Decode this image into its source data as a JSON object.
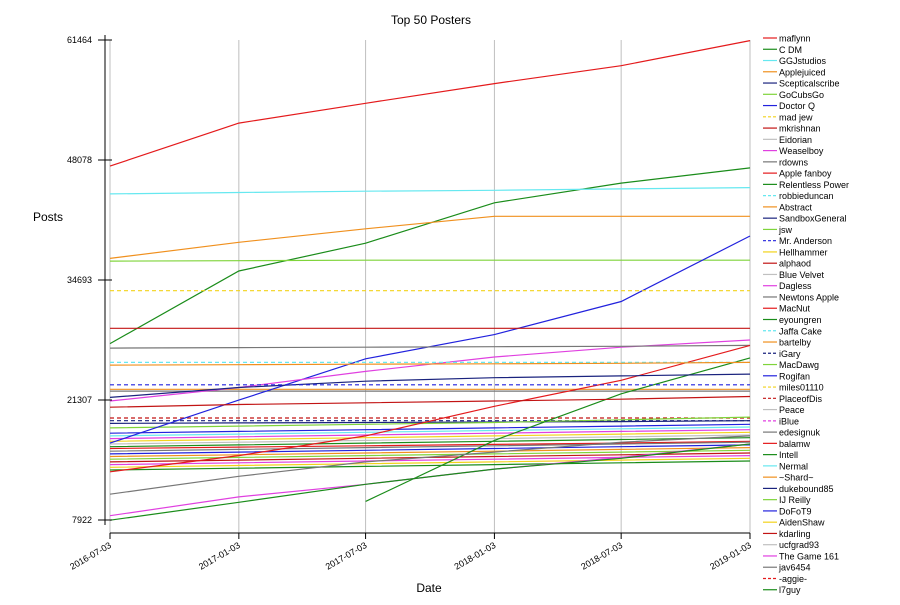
{
  "chart_data": {
    "type": "line",
    "title": "Top 50 Posters",
    "xlabel": "Date",
    "ylabel": "Posts",
    "x": [
      "2016-07-03",
      "2017-01-03",
      "2017-07-03",
      "2018-01-03",
      "2018-07-03",
      "2019-01-03"
    ],
    "xlim": [
      "2016-07-03",
      "2019-01-03"
    ],
    "ylim": [
      7922,
      61464
    ],
    "yticks": [
      7922,
      21307,
      34693,
      48078,
      61464
    ],
    "grid": "vertical",
    "legend_position": "right",
    "series": [
      {
        "name": "maflynn",
        "color": "#e41a1c",
        "dashed": false,
        "values": [
          47400,
          52200,
          54400,
          56600,
          58600,
          61400
        ]
      },
      {
        "name": "C DM",
        "color": "#1a8c1a",
        "dashed": false,
        "values": [
          27600,
          35700,
          38800,
          43300,
          45500,
          47200
        ]
      },
      {
        "name": "GGJstudios",
        "color": "#66e8f0",
        "dashed": false,
        "values": [
          44300,
          44450,
          44600,
          44700,
          44850,
          45000
        ]
      },
      {
        "name": "Applejuiced",
        "color": "#f0901e",
        "dashed": false,
        "values": [
          37100,
          38900,
          40400,
          41800,
          41800,
          41800
        ]
      },
      {
        "name": "Scepticalscribe",
        "color": "#1a237e",
        "dashed": false,
        "values": [
          null,
          null,
          null,
          null,
          null,
          null
        ]
      },
      {
        "name": "GoCubsGo",
        "color": "#7fd43a",
        "dashed": false,
        "values": [
          36800,
          36850,
          36900,
          36900,
          36900,
          36900
        ]
      },
      {
        "name": "Doctor Q",
        "color": "#2222dd",
        "dashed": false,
        "values": [
          16500,
          21300,
          25900,
          28600,
          32300,
          39600
        ]
      },
      {
        "name": "mad jew",
        "color": "#f2d21b",
        "dashed": true,
        "values": [
          33500,
          33500,
          33500,
          33500,
          33500,
          33500
        ]
      },
      {
        "name": "mkrishnan",
        "color": "#c21414",
        "dashed": false,
        "values": [
          29300,
          29300,
          29300,
          29300,
          29300,
          29300
        ]
      },
      {
        "name": "Eidorian",
        "color": "#c0c0c0",
        "dashed": false,
        "values": [
          null,
          null,
          null,
          null,
          null,
          null
        ]
      },
      {
        "name": "Weaselboy",
        "color": "#e040e0",
        "dashed": false,
        "values": [
          21200,
          22700,
          24500,
          26100,
          27200,
          28000
        ]
      },
      {
        "name": "rdowns",
        "color": "#777777",
        "dashed": false,
        "values": [
          27100,
          27150,
          27200,
          27250,
          27300,
          27400
        ]
      },
      {
        "name": "Apple fanboy",
        "color": "#e41a1c",
        "dashed": false,
        "values": [
          13300,
          15100,
          17300,
          20600,
          23500,
          27400
        ]
      },
      {
        "name": "Relentless Power",
        "color": "#1a8c1a",
        "dashed": false,
        "values": [
          null,
          null,
          10000,
          16800,
          22000,
          26000
        ]
      },
      {
        "name": "robbieduncan",
        "color": "#66e8f0",
        "dashed": true,
        "values": [
          25500,
          25500,
          25500,
          25500,
          25500,
          25500
        ]
      },
      {
        "name": "Abstract",
        "color": "#f0901e",
        "dashed": false,
        "values": [
          25200,
          25250,
          25300,
          25350,
          25400,
          25500
        ]
      },
      {
        "name": "SandboxGeneral",
        "color": "#1a237e",
        "dashed": false,
        "values": [
          21600,
          22700,
          23400,
          23800,
          24000,
          24200
        ]
      },
      {
        "name": "jsw",
        "color": "#7fd43a",
        "dashed": false,
        "values": [
          null,
          null,
          null,
          null,
          null,
          null
        ]
      },
      {
        "name": "Mr. Anderson",
        "color": "#2222dd",
        "dashed": true,
        "values": [
          23000,
          23000,
          23000,
          23000,
          23000,
          23000
        ]
      },
      {
        "name": "Hellhammer",
        "color": "#f2d21b",
        "dashed": false,
        "values": [
          null,
          null,
          null,
          null,
          null,
          null
        ]
      },
      {
        "name": "alphaod",
        "color": "#c21414",
        "dashed": false,
        "values": [
          20500,
          20800,
          21000,
          21200,
          21400,
          21700
        ]
      },
      {
        "name": "Blue Velvet",
        "color": "#c0c0c0",
        "dashed": false,
        "values": [
          null,
          null,
          null,
          null,
          null,
          null
        ]
      },
      {
        "name": "Dagless",
        "color": "#e040e0",
        "dashed": false,
        "values": [
          null,
          null,
          null,
          null,
          null,
          null
        ]
      },
      {
        "name": "Newtons Apple",
        "color": "#777777",
        "dashed": false,
        "values": [
          null,
          null,
          null,
          null,
          null,
          null
        ]
      },
      {
        "name": "MacNut",
        "color": "#e41a1c",
        "dashed": false,
        "values": [
          null,
          null,
          null,
          null,
          null,
          null
        ]
      },
      {
        "name": "eyoungren",
        "color": "#1a8c1a",
        "dashed": false,
        "values": [
          null,
          null,
          null,
          null,
          null,
          null
        ]
      },
      {
        "name": "Jaffa Cake",
        "color": "#66e8f0",
        "dashed": true,
        "values": [
          null,
          null,
          null,
          null,
          null,
          null
        ]
      },
      {
        "name": "bartelby",
        "color": "#f0901e",
        "dashed": false,
        "values": [
          null,
          null,
          null,
          null,
          null,
          null
        ]
      },
      {
        "name": "iGary",
        "color": "#1a237e",
        "dashed": true,
        "values": [
          null,
          null,
          null,
          null,
          null,
          null
        ]
      },
      {
        "name": "MacDawg",
        "color": "#7fd43a",
        "dashed": false,
        "values": [
          null,
          null,
          null,
          null,
          null,
          null
        ]
      },
      {
        "name": "Rogifan",
        "color": "#2222dd",
        "dashed": false,
        "values": [
          null,
          null,
          null,
          null,
          null,
          null
        ]
      },
      {
        "name": "miles01110",
        "color": "#f2d21b",
        "dashed": true,
        "values": [
          null,
          null,
          null,
          null,
          null,
          null
        ]
      },
      {
        "name": "PlaceofDis",
        "color": "#c21414",
        "dashed": true,
        "values": [
          null,
          null,
          null,
          null,
          null,
          null
        ]
      },
      {
        "name": "Peace",
        "color": "#c0c0c0",
        "dashed": false,
        "values": [
          null,
          null,
          null,
          null,
          null,
          null
        ]
      },
      {
        "name": "iBlue",
        "color": "#e040e0",
        "dashed": true,
        "values": [
          null,
          null,
          null,
          null,
          null,
          null
        ]
      },
      {
        "name": "edesignuk",
        "color": "#777777",
        "dashed": false,
        "values": [
          null,
          null,
          null,
          null,
          null,
          null
        ]
      },
      {
        "name": "balamw",
        "color": "#e41a1c",
        "dashed": false,
        "values": [
          null,
          null,
          null,
          null,
          null,
          null
        ]
      },
      {
        "name": "Intell",
        "color": "#1a8c1a",
        "dashed": false,
        "values": [
          null,
          null,
          null,
          null,
          null,
          null
        ]
      },
      {
        "name": "Nermal",
        "color": "#66e8f0",
        "dashed": false,
        "values": [
          null,
          null,
          null,
          null,
          null,
          null
        ]
      },
      {
        "name": "~Shard~",
        "color": "#f0901e",
        "dashed": false,
        "values": [
          null,
          null,
          null,
          null,
          null,
          null
        ]
      },
      {
        "name": "dukebound85",
        "color": "#1a237e",
        "dashed": false,
        "values": [
          null,
          null,
          null,
          null,
          null,
          null
        ]
      },
      {
        "name": "IJ Reilly",
        "color": "#7fd43a",
        "dashed": false,
        "values": [
          null,
          null,
          null,
          null,
          null,
          null
        ]
      },
      {
        "name": "DoFoT9",
        "color": "#2222dd",
        "dashed": false,
        "values": [
          null,
          null,
          null,
          null,
          null,
          null
        ]
      },
      {
        "name": "AidenShaw",
        "color": "#f2d21b",
        "dashed": false,
        "values": [
          null,
          null,
          null,
          null,
          null,
          null
        ]
      },
      {
        "name": "kdarling",
        "color": "#c21414",
        "dashed": false,
        "values": [
          null,
          null,
          null,
          null,
          null,
          null
        ]
      },
      {
        "name": "ucfgrad93",
        "color": "#c0c0c0",
        "dashed": false,
        "values": [
          null,
          null,
          null,
          null,
          null,
          null
        ]
      },
      {
        "name": "The Game 161",
        "color": "#e040e0",
        "dashed": false,
        "values": [
          8400,
          10500,
          11900,
          13600,
          14900,
          16400
        ]
      },
      {
        "name": "jav6454",
        "color": "#777777",
        "dashed": false,
        "values": [
          10800,
          12800,
          14400,
          15500,
          16600,
          17300
        ]
      },
      {
        "name": "-aggie-",
        "color": "#e41a1c",
        "dashed": true,
        "values": [
          null,
          null,
          null,
          null,
          null,
          null
        ]
      },
      {
        "name": "l7guy",
        "color": "#1a8c1a",
        "dashed": false,
        "values": [
          7900,
          9900,
          11900,
          13600,
          14800,
          16400
        ]
      }
    ],
    "background_series": [
      {
        "color": "#777777",
        "dashed": false,
        "values": [
          22300,
          22300,
          22300,
          22300,
          22300,
          22300
        ]
      },
      {
        "color": "#f0901e",
        "dashed": false,
        "values": [
          22500,
          22500,
          22500,
          22500,
          22500,
          22500
        ]
      },
      {
        "color": "#1a237e",
        "dashed": true,
        "values": [
          19000,
          19000,
          19000,
          19000,
          19000,
          19000
        ]
      },
      {
        "color": "#c21414",
        "dashed": true,
        "values": [
          19300,
          19300,
          19300,
          19300,
          19300,
          19300
        ]
      },
      {
        "color": "#1a237e",
        "dashed": false,
        "values": [
          18700,
          18750,
          18800,
          18850,
          18900,
          19000
        ]
      },
      {
        "color": "#7fd43a",
        "dashed": false,
        "values": [
          18200,
          18400,
          18600,
          18800,
          19100,
          19400
        ]
      },
      {
        "color": "#2222dd",
        "dashed": false,
        "values": [
          17600,
          17800,
          18000,
          18200,
          18400,
          18600
        ]
      },
      {
        "color": "#66e8f0",
        "dashed": false,
        "values": [
          17300,
          17500,
          17700,
          17900,
          18100,
          18300
        ]
      },
      {
        "color": "#e040e0",
        "dashed": false,
        "values": [
          17000,
          17200,
          17400,
          17600,
          17800,
          18000
        ]
      },
      {
        "color": "#f2d21b",
        "dashed": false,
        "values": [
          16700,
          16900,
          17100,
          17300,
          17500,
          17700
        ]
      },
      {
        "color": "#c0c0c0",
        "dashed": false,
        "values": [
          16400,
          16600,
          16800,
          17000,
          17200,
          17400
        ]
      },
      {
        "color": "#1a8c1a",
        "dashed": false,
        "values": [
          16100,
          16300,
          16500,
          16700,
          16900,
          17100
        ]
      },
      {
        "color": "#e41a1c",
        "dashed": false,
        "values": [
          15900,
          16050,
          16200,
          16350,
          16500,
          16700
        ]
      },
      {
        "color": "#777777",
        "dashed": false,
        "values": [
          15600,
          15800,
          16000,
          16200,
          16400,
          16600
        ]
      },
      {
        "color": "#2222dd",
        "dashed": false,
        "values": [
          15300,
          15500,
          15700,
          15900,
          16100,
          16300
        ]
      },
      {
        "color": "#f0901e",
        "dashed": false,
        "values": [
          15000,
          15200,
          15400,
          15600,
          15800,
          16000
        ]
      },
      {
        "color": "#7fd43a",
        "dashed": false,
        "values": [
          14700,
          14900,
          15100,
          15300,
          15500,
          15700
        ]
      },
      {
        "color": "#c21414",
        "dashed": false,
        "values": [
          14400,
          14600,
          14800,
          15000,
          15200,
          15400
        ]
      },
      {
        "color": "#e040e0",
        "dashed": false,
        "values": [
          14100,
          14300,
          14500,
          14700,
          14900,
          15100
        ]
      },
      {
        "color": "#f2d21b",
        "dashed": false,
        "values": [
          13800,
          14000,
          14200,
          14400,
          14600,
          14800
        ]
      },
      {
        "color": "#1a8c1a",
        "dashed": false,
        "values": [
          13500,
          13700,
          13900,
          14100,
          14300,
          14500
        ]
      }
    ]
  }
}
